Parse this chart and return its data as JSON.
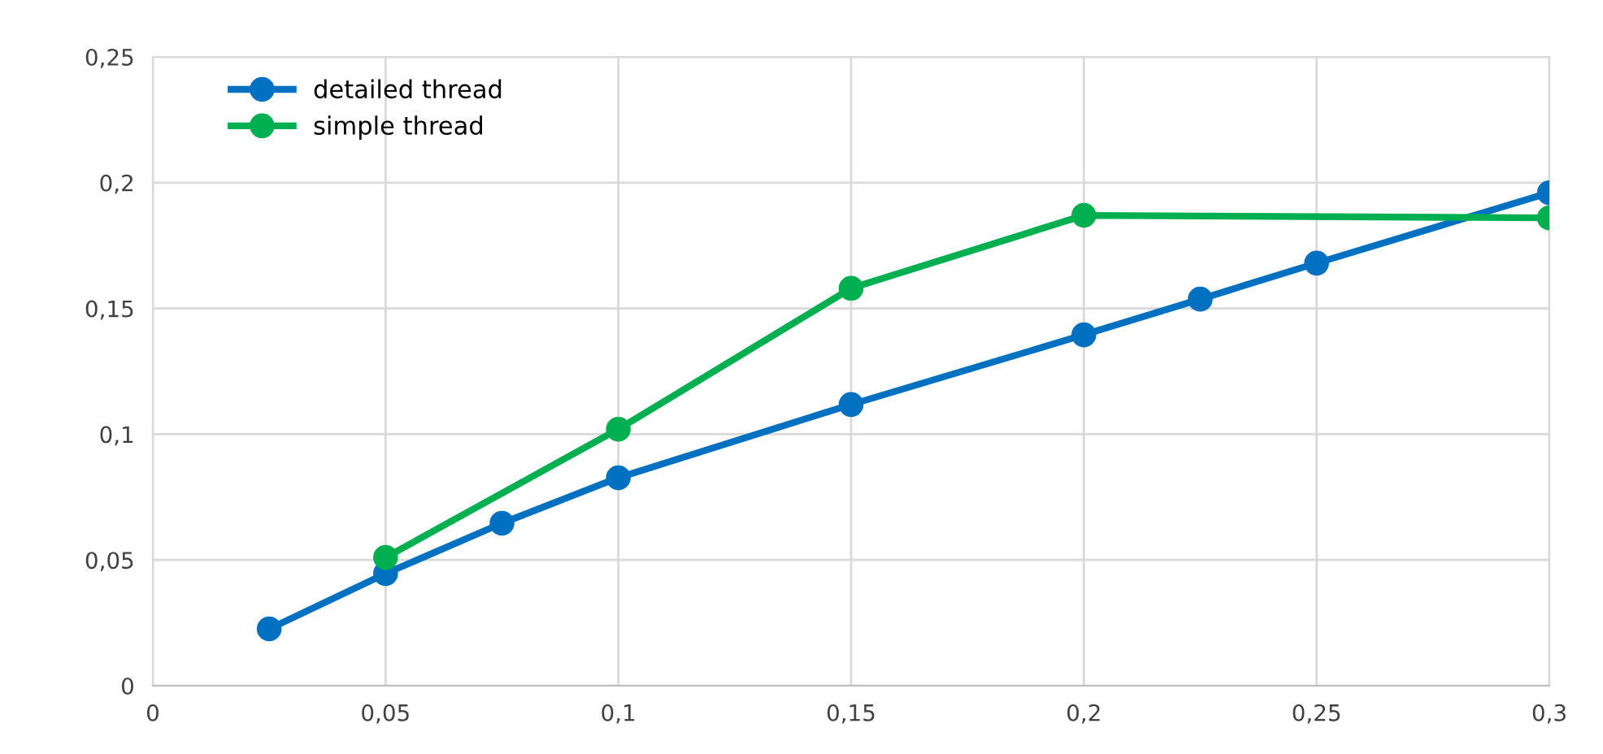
{
  "chart_data": {
    "type": "line",
    "series": [
      {
        "name": "detailed thread",
        "color": "#0070c0",
        "x": [
          0.025,
          0.05,
          0.075,
          0.1,
          0.15,
          0.2,
          0.225,
          0.25,
          0.3
        ],
        "values": [
          0.0226,
          0.0446,
          0.0646,
          0.0827,
          0.1118,
          0.1395,
          0.1537,
          0.168,
          0.196
        ]
      },
      {
        "name": "simple thread",
        "color": "#00b050",
        "x": [
          0.05,
          0.1,
          0.15,
          0.2,
          0.3
        ],
        "values": [
          0.051,
          0.102,
          0.158,
          0.187,
          0.186
        ]
      }
    ],
    "xlim": [
      0,
      0.3
    ],
    "xticks": [
      0,
      {
        "value": 0.05,
        "label": "0,05"
      },
      {
        "value": 0.1,
        "label": "0,1"
      },
      {
        "value": 0.15,
        "label": "0,15"
      },
      {
        "value": 0.2,
        "label": "0,2"
      },
      {
        "value": 0.25,
        "label": "0,25"
      },
      {
        "value": 0.3,
        "label": "0,3"
      }
    ],
    "ylim": [
      0,
      0.25
    ],
    "yticks": [
      0,
      {
        "value": 0.05,
        "label": "0,05"
      },
      {
        "value": 0.1,
        "label": "0,1"
      },
      {
        "value": 0.15,
        "label": "0,15"
      },
      {
        "value": 0.2,
        "label": "0,2"
      },
      {
        "value": 0.25,
        "label": "0,25"
      }
    ],
    "grid": true,
    "legend": "top left",
    "marker": "circle",
    "line_style": "solid"
  }
}
